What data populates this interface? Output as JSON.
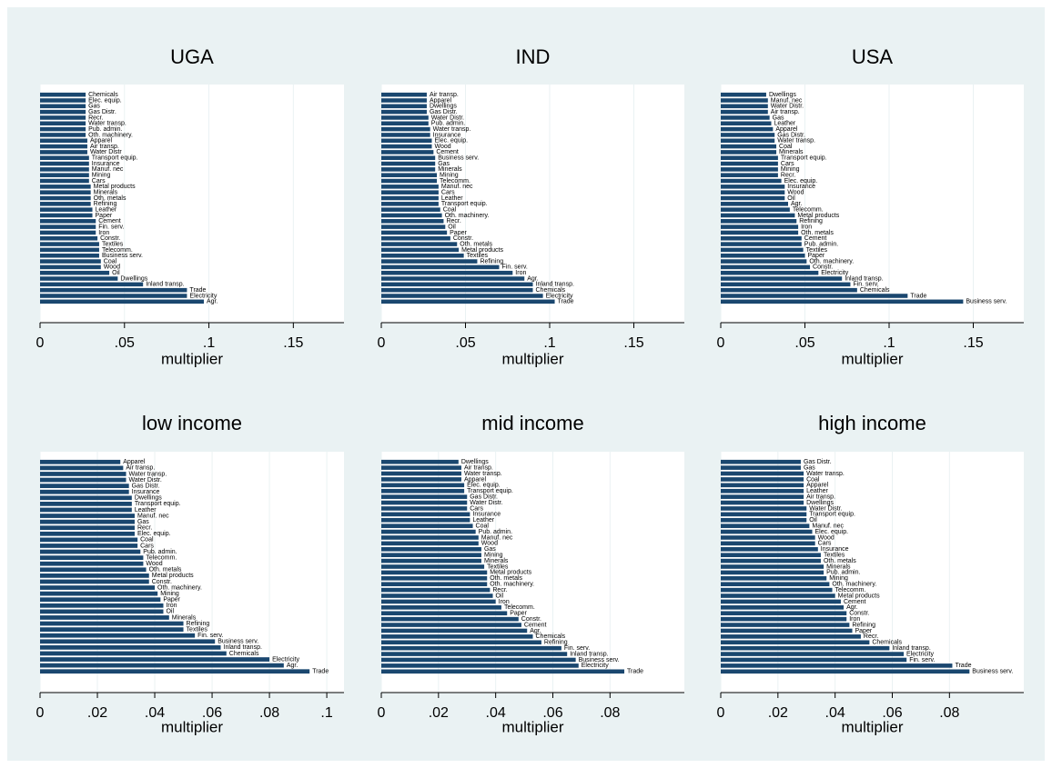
{
  "chart_data": [
    {
      "type": "bar",
      "horizontal": true,
      "title": "UGA",
      "xlabel": "multiplier",
      "color": "#1a476f",
      "grid": true,
      "xlim": [
        0,
        0.18
      ],
      "xticks": [
        0,
        {
          "value": 0.05,
          "label": ".05"
        },
        {
          "value": 0.1,
          "label": ".1"
        },
        {
          "value": 0.15,
          "label": ".15"
        }
      ],
      "categories": [
        "Chemicals",
        "Elec. equip.",
        "Gas",
        "Gas Distr.",
        "Recr.",
        "Water transp.",
        "Pub. admin.",
        "Oth. machinery.",
        "Apparel",
        "Air transp.",
        "Water Distr",
        "Transport equip.",
        "Insurance",
        "Manuf. nec",
        "Mining",
        "Cars",
        "Metal products",
        "Minerals",
        "Oth. metals",
        "Refining",
        "Leather",
        "Paper",
        "Cement",
        "Fin. serv.",
        "Iron",
        "Constr.",
        "Textiles",
        "Telecomm.",
        "Business serv.",
        "Coal",
        "Wood",
        "Oil",
        "Dwellings",
        "Inland transp.",
        "Trade",
        "Electricity",
        "Agr."
      ],
      "values": [
        0.027,
        0.027,
        0.027,
        0.027,
        0.027,
        0.027,
        0.027,
        0.027,
        0.028,
        0.028,
        0.028,
        0.029,
        0.029,
        0.029,
        0.029,
        0.029,
        0.03,
        0.03,
        0.03,
        0.03,
        0.031,
        0.031,
        0.033,
        0.033,
        0.033,
        0.034,
        0.035,
        0.035,
        0.035,
        0.036,
        0.036,
        0.041,
        0.046,
        0.061,
        0.087,
        0.087,
        0.097
      ]
    },
    {
      "type": "bar",
      "horizontal": true,
      "title": "IND",
      "xlabel": "multiplier",
      "color": "#1a476f",
      "grid": true,
      "xlim": [
        0,
        0.18
      ],
      "xticks": [
        0,
        {
          "value": 0.05,
          "label": ".05"
        },
        {
          "value": 0.1,
          "label": ".1"
        },
        {
          "value": 0.15,
          "label": ".15"
        }
      ],
      "categories": [
        "Air transp.",
        "Apparel",
        "Dwellings",
        "Gas Distr.",
        "Water Distr.",
        "Pub. admin.",
        "Water transp.",
        "Insurance",
        "Elec. equip.",
        "Wood",
        "Cement",
        "Business serv.",
        "Gas",
        "Minerals",
        "Mining",
        "Telecomm.",
        "Manuf. nec",
        "Cars",
        "Leather",
        "Transport equip.",
        "Coal",
        "Oth. machinery.",
        "Recr.",
        "Oil",
        "Paper",
        "Constr.",
        "Oth. metals",
        "Metal products",
        "Textiles",
        "Refining",
        "Fin. serv.",
        "Iron",
        "Agr.",
        "Inland transp.",
        "Chemicals",
        "Electricity",
        "Trade"
      ],
      "values": [
        0.027,
        0.027,
        0.027,
        0.027,
        0.028,
        0.028,
        0.029,
        0.029,
        0.03,
        0.03,
        0.031,
        0.032,
        0.032,
        0.032,
        0.033,
        0.033,
        0.034,
        0.034,
        0.034,
        0.034,
        0.035,
        0.036,
        0.037,
        0.038,
        0.039,
        0.041,
        0.045,
        0.046,
        0.049,
        0.057,
        0.07,
        0.078,
        0.085,
        0.09,
        0.09,
        0.096,
        0.103
      ]
    },
    {
      "type": "bar",
      "horizontal": true,
      "title": "USA",
      "xlabel": "multiplier",
      "color": "#1a476f",
      "grid": true,
      "xlim": [
        0,
        0.18
      ],
      "xticks": [
        0,
        {
          "value": 0.05,
          "label": ".05"
        },
        {
          "value": 0.1,
          "label": ".1"
        },
        {
          "value": 0.15,
          "label": ".15"
        }
      ],
      "categories": [
        "Dwellings",
        "Manuf. nec",
        "Water Distr.",
        "Air transp.",
        "Gas",
        "Leather",
        "Apparel",
        "Gas Distr.",
        "Water transp.",
        "Coal",
        "Minerals",
        "Transport equip.",
        "Cars",
        "Mining",
        "Recr.",
        "Elec. equip.",
        "Insurance",
        "Wood",
        "Oil",
        "Agr.",
        "Telecomm.",
        "Metal products",
        "Refining",
        "Iron",
        "Oth. metals",
        "Cement",
        "Pub. admin.",
        "Textiles",
        "Paper",
        "Oth. machinery.",
        "Constr.",
        "Electricity",
        "Inland transp.",
        "Fin. serv.",
        "Chemicals",
        "Trade",
        "Business serv."
      ],
      "values": [
        0.027,
        0.028,
        0.028,
        0.028,
        0.029,
        0.03,
        0.031,
        0.032,
        0.032,
        0.033,
        0.033,
        0.034,
        0.034,
        0.034,
        0.034,
        0.036,
        0.038,
        0.038,
        0.038,
        0.04,
        0.041,
        0.044,
        0.045,
        0.046,
        0.046,
        0.048,
        0.048,
        0.049,
        0.05,
        0.051,
        0.053,
        0.058,
        0.072,
        0.077,
        0.081,
        0.111,
        0.144
      ]
    },
    {
      "type": "bar",
      "horizontal": true,
      "title": "low income",
      "xlabel": "multiplier",
      "color": "#1a476f",
      "grid": true,
      "xlim": [
        0,
        0.106
      ],
      "xticks": [
        0,
        {
          "value": 0.02,
          "label": ".02"
        },
        {
          "value": 0.04,
          "label": ".04"
        },
        {
          "value": 0.06,
          "label": ".06"
        },
        {
          "value": 0.08,
          "label": ".08"
        },
        {
          "value": 0.1,
          "label": ".1"
        }
      ],
      "categories": [
        "Apparel",
        "Air transp.",
        "Water transp.",
        "Water Distr.",
        "Gas Distr.",
        "Insurance",
        "Dwellings",
        "Transport equip.",
        "Leather",
        "Manuf. nec",
        "Gas",
        "Recr.",
        "Elec. equip.",
        "Coal",
        "Cars",
        "Pub. admin.",
        "Telecomm.",
        "Wood",
        "Oth. metals",
        "Metal products",
        "Constr.",
        "Oth. machinery.",
        "Mining",
        "Paper",
        "Iron",
        "Oil",
        "Minerals",
        "Refining",
        "Textiles",
        "Fin. serv.",
        "Business serv.",
        "Inland transp.",
        "Chemicals",
        "Electricity",
        "Agr.",
        "Trade"
      ],
      "values": [
        0.028,
        0.029,
        0.03,
        0.03,
        0.031,
        0.031,
        0.032,
        0.032,
        0.032,
        0.033,
        0.033,
        0.033,
        0.033,
        0.034,
        0.034,
        0.035,
        0.036,
        0.036,
        0.037,
        0.038,
        0.038,
        0.04,
        0.041,
        0.042,
        0.043,
        0.043,
        0.045,
        0.05,
        0.05,
        0.054,
        0.061,
        0.063,
        0.065,
        0.08,
        0.085,
        0.094
      ]
    },
    {
      "type": "bar",
      "horizontal": true,
      "title": "mid income",
      "xlabel": "multiplier",
      "color": "#1a476f",
      "grid": true,
      "xlim": [
        0,
        0.106
      ],
      "xticks": [
        0,
        {
          "value": 0.02,
          "label": ".02"
        },
        {
          "value": 0.04,
          "label": ".04"
        },
        {
          "value": 0.06,
          "label": ".06"
        },
        {
          "value": 0.08,
          "label": ".08"
        }
      ],
      "categories": [
        "Dwellings",
        "Air transp.",
        "Water transp.",
        "Apparel",
        "Elec. equip.",
        "Transport equip.",
        "Gas Distr.",
        "Water Distr.",
        "Cars",
        "Insurance",
        "Leather",
        "Coal",
        "Pub. admin.",
        "Manuf. nec",
        "Wood",
        "Gas",
        "Mining",
        "Minerals",
        "Textiles",
        "Metal products",
        "Oth. metals",
        "Oth. machinery.",
        "Recr.",
        "Oil",
        "Iron",
        "Telecomm.",
        "Paper",
        "Constr.",
        "Cement",
        "Agr.",
        "Chemicals",
        "Refining",
        "Fin. serv.",
        "Inland transp.",
        "Business serv.",
        "Electricity",
        "Trade"
      ],
      "values": [
        0.027,
        0.028,
        0.028,
        0.028,
        0.029,
        0.029,
        0.03,
        0.03,
        0.03,
        0.031,
        0.031,
        0.032,
        0.033,
        0.034,
        0.034,
        0.035,
        0.035,
        0.035,
        0.036,
        0.037,
        0.037,
        0.037,
        0.038,
        0.039,
        0.04,
        0.042,
        0.044,
        0.048,
        0.049,
        0.051,
        0.053,
        0.056,
        0.063,
        0.065,
        0.068,
        0.069,
        0.085
      ]
    },
    {
      "type": "bar",
      "horizontal": true,
      "title": "high income",
      "xlabel": "multiplier",
      "color": "#1a476f",
      "grid": true,
      "xlim": [
        0,
        0.106
      ],
      "xticks": [
        0,
        {
          "value": 0.02,
          "label": ".02"
        },
        {
          "value": 0.04,
          "label": ".04"
        },
        {
          "value": 0.06,
          "label": ".06"
        },
        {
          "value": 0.08,
          "label": ".08"
        }
      ],
      "categories": [
        "Gas Distr.",
        "Gas",
        "Water transp.",
        "Coal",
        "Apparel",
        "Leather",
        "Air transp.",
        "Dwellings",
        "Water Distr.",
        "Transport equip.",
        "Oil",
        "Manuf. nec",
        "Elec. equip.",
        "Wood",
        "Cars",
        "Insurance",
        "Textiles",
        "Oth. metals",
        "Minerals",
        "Pub. admin.",
        "Mining",
        "Oth. machinery.",
        "Telecomm.",
        "Metal products",
        "Cement",
        "Agr.",
        "Constr.",
        "Iron",
        "Refining",
        "Paper",
        "Recr.",
        "Chemicals",
        "Inland transp.",
        "Electricity",
        "Fin. serv.",
        "Trade",
        "Business serv."
      ],
      "values": [
        0.028,
        0.028,
        0.029,
        0.029,
        0.029,
        0.029,
        0.029,
        0.029,
        0.03,
        0.03,
        0.03,
        0.031,
        0.032,
        0.033,
        0.033,
        0.034,
        0.035,
        0.035,
        0.036,
        0.036,
        0.037,
        0.038,
        0.039,
        0.04,
        0.042,
        0.043,
        0.044,
        0.044,
        0.045,
        0.046,
        0.049,
        0.052,
        0.059,
        0.064,
        0.065,
        0.081,
        0.087
      ]
    }
  ]
}
